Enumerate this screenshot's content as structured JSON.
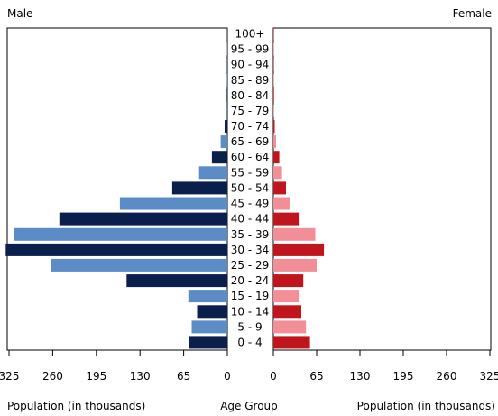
{
  "chart_data": {
    "type": "bar",
    "layout": "population-pyramid",
    "left_title": "Male",
    "right_title": "Female",
    "categories": [
      "0 - 4",
      "5 - 9",
      "10 - 14",
      "15 - 19",
      "20 - 24",
      "25 - 29",
      "30 - 34",
      "35 - 39",
      "40 - 44",
      "45 - 49",
      "50 - 54",
      "55 - 59",
      "60 - 64",
      "65 - 69",
      "70 - 74",
      "75 - 79",
      "80 - 84",
      "85 - 89",
      "90 - 94",
      "95 - 99",
      "100+"
    ],
    "series": [
      {
        "name": "Male",
        "values": [
          57,
          53,
          45,
          58,
          150,
          262,
          330,
          318,
          250,
          160,
          82,
          42,
          23,
          10,
          4,
          2,
          1,
          1,
          0.5,
          0.5,
          0.5
        ]
      },
      {
        "name": "Female",
        "values": [
          55,
          49,
          42,
          38,
          45,
          65,
          76,
          63,
          38,
          25,
          19,
          13,
          9,
          4,
          2,
          1,
          1,
          0.5,
          0.5,
          0.5,
          0.5
        ]
      }
    ],
    "xlim": [
      0,
      325
    ],
    "xticks": [
      325,
      260,
      195,
      130,
      65,
      0
    ],
    "xticks_right": [
      0,
      65,
      130,
      195,
      260,
      325
    ],
    "xlabel_left": "Population (in thousands)",
    "xlabel_center": "Age Group",
    "xlabel_right": "Population (in thousands)",
    "colors": {
      "male_dark": "#0b1f4d",
      "male_light": "#5b8cc6",
      "female_dark": "#c0151c",
      "female_light": "#f28e95"
    }
  }
}
